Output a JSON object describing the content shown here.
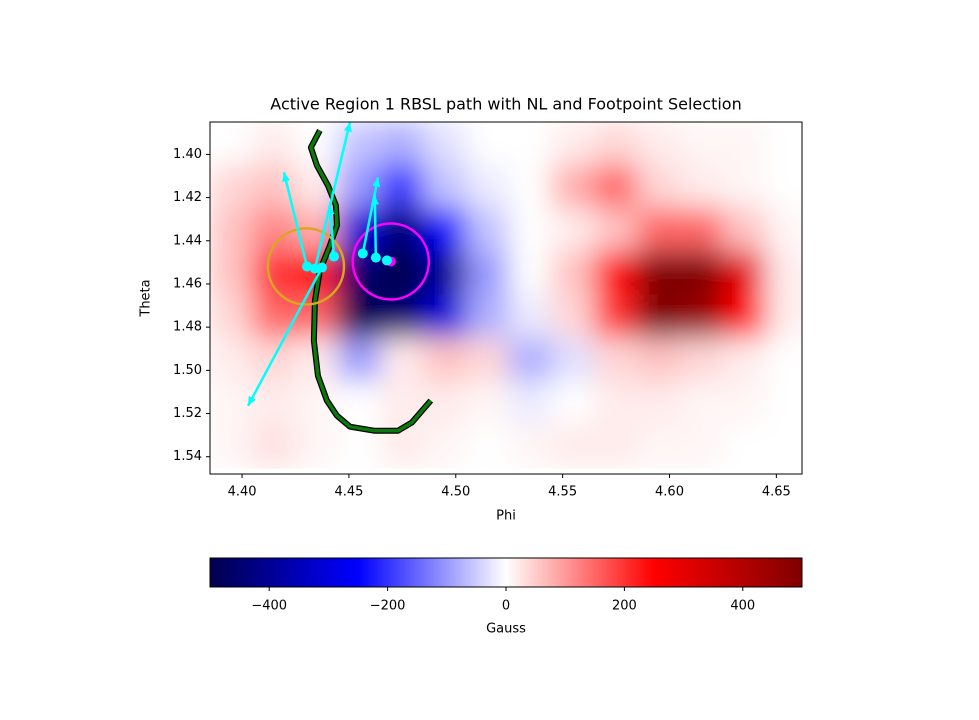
{
  "chart_data": {
    "type": "heatmap",
    "title": "Active Region 1 RBSL path with NL and Footpoint Selection",
    "xlabel": "Phi",
    "ylabel": "Theta",
    "xlim": [
      4.385,
      4.662
    ],
    "ylim": [
      1.385,
      1.548
    ],
    "y_inverted": true,
    "xticks": [
      {
        "value": 4.4,
        "label": "4.40"
      },
      {
        "value": 4.45,
        "label": "4.45"
      },
      {
        "value": 4.5,
        "label": "4.50"
      },
      {
        "value": 4.55,
        "label": "4.55"
      },
      {
        "value": 4.6,
        "label": "4.60"
      },
      {
        "value": 4.65,
        "label": "4.65"
      }
    ],
    "yticks": [
      {
        "value": 1.4,
        "label": "1.40"
      },
      {
        "value": 1.42,
        "label": "1.42"
      },
      {
        "value": 1.44,
        "label": "1.44"
      },
      {
        "value": 1.46,
        "label": "1.46"
      },
      {
        "value": 1.48,
        "label": "1.48"
      },
      {
        "value": 1.5,
        "label": "1.50"
      },
      {
        "value": 1.52,
        "label": "1.52"
      },
      {
        "value": 1.54,
        "label": "1.54"
      }
    ],
    "colormap": "seismic",
    "field": {
      "phi": [
        4.395,
        4.415,
        4.435,
        4.455,
        4.475,
        4.495,
        4.515,
        4.535,
        4.555,
        4.575,
        4.595,
        4.615,
        4.635,
        4.655
      ],
      "theta": [
        1.395,
        1.415,
        1.435,
        1.455,
        1.475,
        1.495,
        1.515,
        1.535
      ],
      "values": [
        [
          0,
          20,
          0,
          -60,
          -80,
          -30,
          0,
          0,
          20,
          40,
          20,
          10,
          10,
          0
        ],
        [
          40,
          60,
          20,
          -100,
          -200,
          -60,
          -20,
          0,
          80,
          150,
          40,
          20,
          10,
          0
        ],
        [
          60,
          120,
          80,
          -300,
          -450,
          -250,
          -60,
          0,
          20,
          60,
          150,
          150,
          60,
          10
        ],
        [
          60,
          200,
          250,
          -450,
          -500,
          -400,
          -100,
          0,
          60,
          250,
          500,
          500,
          300,
          20
        ],
        [
          40,
          150,
          150,
          -500,
          -450,
          -300,
          -80,
          -20,
          40,
          200,
          500,
          450,
          250,
          20
        ],
        [
          20,
          40,
          20,
          -100,
          20,
          60,
          40,
          -80,
          -30,
          40,
          60,
          40,
          20,
          0
        ],
        [
          10,
          20,
          10,
          0,
          20,
          20,
          10,
          -20,
          0,
          20,
          20,
          10,
          10,
          0
        ],
        [
          10,
          30,
          10,
          0,
          20,
          10,
          0,
          10,
          20,
          20,
          10,
          10,
          0,
          0
        ]
      ]
    },
    "path": {
      "color": "#0a7a0a",
      "phi": [
        4.4364,
        4.4322,
        4.435,
        4.4402,
        4.4439,
        4.4444,
        4.4411,
        4.4364,
        4.4341,
        4.4336,
        4.4355,
        4.4397,
        4.4444,
        4.4505,
        4.4621,
        4.4729,
        4.4794,
        4.4883
      ],
      "theta": [
        1.3889,
        1.3968,
        1.4051,
        1.4144,
        1.4236,
        1.4329,
        1.4422,
        1.4538,
        1.4677,
        1.4862,
        1.5025,
        1.514,
        1.521,
        1.5261,
        1.528,
        1.528,
        1.5242,
        1.514
      ]
    },
    "circles": [
      {
        "color": "#daa520",
        "phi": 4.4299,
        "theta": 1.4519,
        "radius": 0.0178
      },
      {
        "color": "#ff00ff",
        "phi": 4.4696,
        "theta": 1.4496,
        "radius": 0.0178
      }
    ],
    "center_point": {
      "color": "#ff00ff",
      "phi": 4.4696,
      "theta": 1.4496
    },
    "points": {
      "color": "#00ffff",
      "phi": [
        4.4304,
        4.4341,
        4.4374,
        4.443,
        4.4565,
        4.4626,
        4.4678
      ],
      "theta": [
        1.4519,
        1.4529,
        1.4524,
        1.4473,
        1.4459,
        1.4478,
        1.4491
      ]
    },
    "vectors": {
      "color": "#00ffff",
      "phi0": [
        4.4341,
        4.4304,
        4.4374,
        4.443,
        4.4565,
        4.4626
      ],
      "theta0": [
        1.4529,
        1.4519,
        1.4524,
        1.4473,
        1.4459,
        1.4478
      ],
      "phi1": [
        4.4505,
        4.4196,
        4.4028,
        4.4411,
        4.4636,
        4.4621
      ],
      "theta1": [
        1.3852,
        1.4083,
        1.5164,
        1.4236,
        1.4107,
        1.419
      ]
    },
    "colorbar": {
      "label": "Gauss",
      "lim": [
        -500,
        500
      ],
      "ticks": [
        {
          "value": -400,
          "label": "−400"
        },
        {
          "value": -200,
          "label": "−200"
        },
        0,
        200,
        400
      ]
    }
  }
}
